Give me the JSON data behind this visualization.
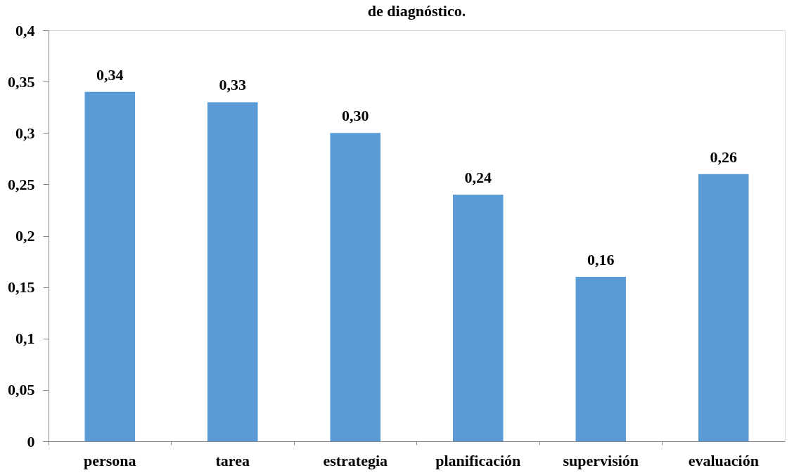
{
  "chart_data": {
    "type": "bar",
    "title": "de diagnóstico.",
    "categories": [
      "persona",
      "tarea",
      "estrategia",
      "planificación",
      "supervisión",
      "evaluación"
    ],
    "values": [
      0.34,
      0.33,
      0.3,
      0.24,
      0.16,
      0.26
    ],
    "value_labels": [
      "0,34",
      "0,33",
      "0,30",
      "0,24",
      "0,16",
      "0,26"
    ],
    "color": "#5b9bd5",
    "ylim": [
      0,
      0.4
    ],
    "yticks": [
      {
        "value": 0,
        "label": "0"
      },
      {
        "value": 0.05,
        "label": "0,05"
      },
      {
        "value": 0.1,
        "label": "0,1"
      },
      {
        "value": 0.15,
        "label": "0,15"
      },
      {
        "value": 0.2,
        "label": "0,2"
      },
      {
        "value": 0.25,
        "label": "0,25"
      },
      {
        "value": 0.3,
        "label": "0,3"
      },
      {
        "value": 0.35,
        "label": "0,35"
      },
      {
        "value": 0.4,
        "label": "0,4"
      }
    ],
    "grid": false
  }
}
